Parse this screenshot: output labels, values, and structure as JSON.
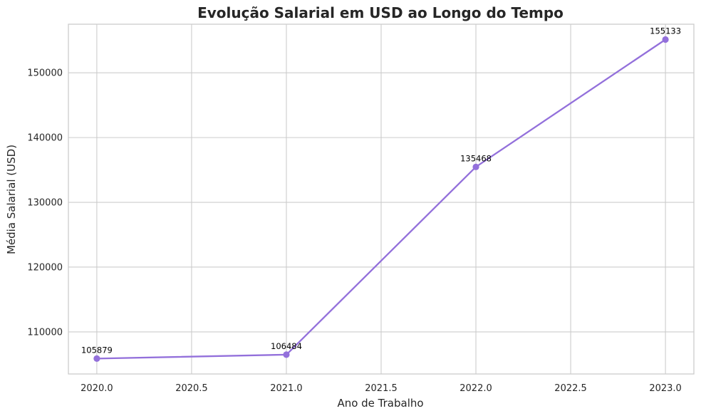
{
  "chart_data": {
    "type": "line",
    "title": "Evolução Salarial em USD ao Longo do Tempo",
    "xlabel": "Ano de Trabalho",
    "ylabel": "Média Salarial (USD)",
    "x": [
      2020,
      2021,
      2022,
      2023
    ],
    "y": [
      105879,
      106484,
      135468,
      155133
    ],
    "point_labels": [
      "105879",
      "106484",
      "135468",
      "155133"
    ],
    "xlim": [
      2019.85,
      2023.15
    ],
    "ylim": [
      103500,
      157500
    ],
    "xticks": [
      2020.0,
      2020.5,
      2021.0,
      2021.5,
      2022.0,
      2022.5,
      2023.0
    ],
    "xtick_labels": [
      "2020.0",
      "2020.5",
      "2021.0",
      "2021.5",
      "2022.0",
      "2022.5",
      "2023.0"
    ],
    "yticks": [
      110000,
      120000,
      130000,
      140000,
      150000
    ],
    "ytick_labels": [
      "110000",
      "120000",
      "130000",
      "140000",
      "150000"
    ],
    "grid": true,
    "line_color": "#9370db"
  }
}
